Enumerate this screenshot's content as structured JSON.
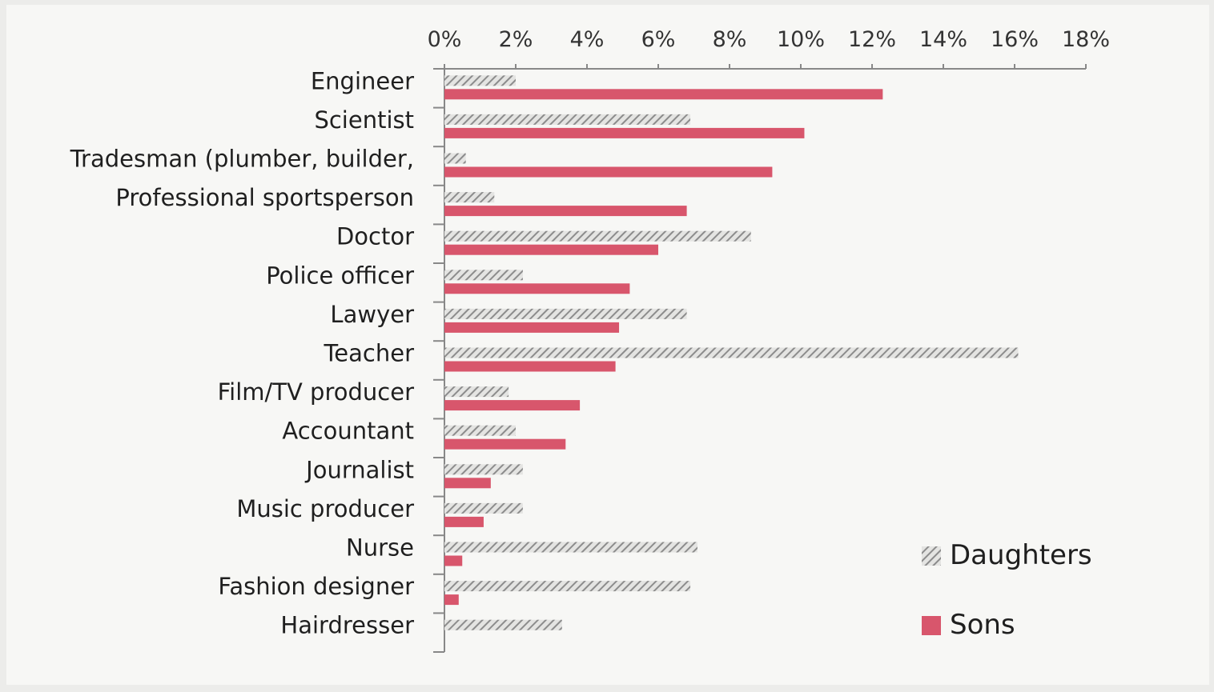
{
  "chart_data": {
    "type": "bar",
    "orientation": "horizontal",
    "categories": [
      "Engineer",
      "Scientist",
      "Tradesman (plumber, builder,",
      "Professional sportsperson",
      "Doctor",
      "Police officer",
      "Lawyer",
      "Teacher",
      "Film/TV producer",
      "Accountant",
      "Journalist",
      "Music producer",
      "Nurse",
      "Fashion designer",
      "Hairdresser"
    ],
    "series": [
      {
        "name": "Daughters",
        "color": "#8c8c8c",
        "pattern": "diagonal-hatch",
        "values": [
          2.0,
          6.9,
          0.6,
          1.4,
          8.6,
          2.2,
          6.8,
          16.1,
          1.8,
          2.0,
          2.2,
          2.2,
          7.1,
          6.9,
          3.3
        ]
      },
      {
        "name": "Sons",
        "color": "#d8566c",
        "pattern": "solid",
        "values": [
          12.3,
          10.1,
          9.2,
          6.8,
          6.0,
          5.2,
          4.9,
          4.8,
          3.8,
          3.4,
          1.3,
          1.1,
          0.5,
          0.4,
          0
        ]
      }
    ],
    "xlim": [
      0,
      18
    ],
    "xticks": [
      0,
      2,
      4,
      6,
      8,
      10,
      12,
      14,
      16,
      18
    ],
    "xtick_labels": [
      "0%",
      "2%",
      "4%",
      "6%",
      "8%",
      "10%",
      "12%",
      "14%",
      "16%",
      "18%"
    ],
    "x_axis_position": "top",
    "title": "",
    "xlabel": "",
    "ylabel": "",
    "grid": false,
    "legend": {
      "position": "bottom-right",
      "entries": [
        "Daughters",
        "Sons"
      ]
    }
  }
}
